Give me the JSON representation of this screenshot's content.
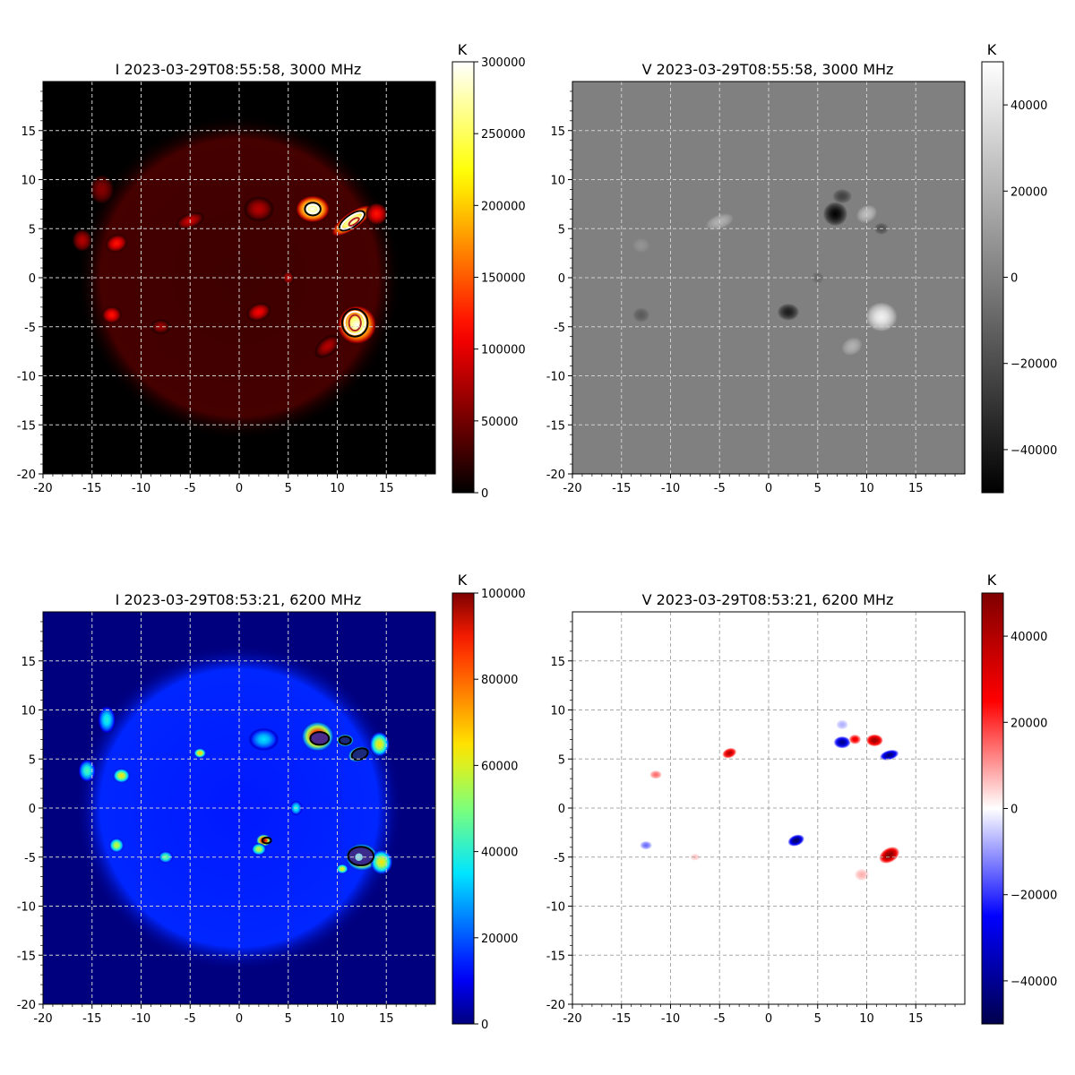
{
  "chart_data": [
    {
      "type": "heatmap",
      "title": "I 2023-03-29T08:55:58, 3000 MHz",
      "stokes": "I",
      "frequency_mhz": 3000,
      "colormap": "hot",
      "xlim": [
        -20,
        20
      ],
      "ylim": [
        -20,
        20
      ],
      "xticks": [
        "-20",
        "-15",
        "-10",
        "-5",
        "0",
        "5",
        "10",
        "15"
      ],
      "yticks": [
        "-20",
        "-15",
        "-10",
        "-5",
        "0",
        "5",
        "10",
        "15"
      ],
      "grid": true,
      "colorbar": {
        "unit": "K",
        "range": [
          0,
          300000
        ],
        "ticks": [
          "0",
          "50000",
          "100000",
          "150000",
          "200000",
          "250000",
          "300000"
        ]
      },
      "disk": {
        "center": [
          0,
          0
        ],
        "radius": 16,
        "brightness_K": 30000
      },
      "sources": [
        {
          "x": 7.5,
          "y": 7,
          "rx": 1.4,
          "ry": 1.1,
          "rot": 0,
          "value_K": 300000
        },
        {
          "x": 11.5,
          "y": 5.8,
          "rx": 2.0,
          "ry": 0.7,
          "rot": 35,
          "value_K": 300000
        },
        {
          "x": 14,
          "y": 6.5,
          "rx": 0.9,
          "ry": 0.9,
          "rot": 0,
          "value_K": 120000
        },
        {
          "x": 12,
          "y": -4.8,
          "rx": 1.6,
          "ry": 1.6,
          "rot": 0,
          "value_K": 300000
        },
        {
          "x": 9,
          "y": -7,
          "rx": 1.2,
          "ry": 0.7,
          "rot": 40,
          "value_K": 80000
        },
        {
          "x": 2,
          "y": -3.5,
          "rx": 1.0,
          "ry": 0.7,
          "rot": 20,
          "value_K": 110000
        },
        {
          "x": -13,
          "y": -3.8,
          "rx": 0.8,
          "ry": 0.7,
          "rot": 0,
          "value_K": 120000
        },
        {
          "x": -12.5,
          "y": 3.5,
          "rx": 0.9,
          "ry": 0.7,
          "rot": 20,
          "value_K": 120000
        },
        {
          "x": -16,
          "y": 3.8,
          "rx": 0.8,
          "ry": 0.9,
          "rot": 0,
          "value_K": 80000
        },
        {
          "x": -5,
          "y": 5.8,
          "rx": 1.2,
          "ry": 0.6,
          "rot": 20,
          "value_K": 90000
        },
        {
          "x": 2,
          "y": 7,
          "rx": 1.2,
          "ry": 1.0,
          "rot": 0,
          "value_K": 80000
        },
        {
          "x": -8,
          "y": -5,
          "rx": 0.8,
          "ry": 0.6,
          "rot": 0,
          "value_K": 70000
        },
        {
          "x": 5,
          "y": 0,
          "rx": 0.5,
          "ry": 0.6,
          "rot": 0,
          "value_K": 80000
        },
        {
          "x": -14,
          "y": 9,
          "rx": 1.0,
          "ry": 1.2,
          "rot": 0,
          "value_K": 60000
        }
      ],
      "contours": [
        {
          "x": 7.5,
          "y": 7,
          "rx": 0.8,
          "ry": 0.65,
          "rot": 0,
          "color": "#000000"
        },
        {
          "x": 7.5,
          "y": 7,
          "rx": 0.6,
          "ry": 0.45,
          "rot": 0,
          "color": "#ffffff"
        },
        {
          "x": 11.5,
          "y": 5.8,
          "rx": 1.5,
          "ry": 0.6,
          "rot": 35,
          "color": "#000000"
        },
        {
          "x": 11.5,
          "y": 5.8,
          "rx": 1.3,
          "ry": 0.45,
          "rot": 35,
          "color": "#ffffff"
        },
        {
          "x": 11.7,
          "y": 5.7,
          "rx": 0.6,
          "ry": 0.25,
          "rot": 35,
          "color": "#b22222"
        },
        {
          "x": 11.8,
          "y": -4.6,
          "rx": 1.3,
          "ry": 1.4,
          "rot": 0,
          "color": "#000000"
        },
        {
          "x": 11.8,
          "y": -4.6,
          "rx": 1.05,
          "ry": 1.15,
          "rot": 0,
          "color": "#ffffff"
        },
        {
          "x": 11.8,
          "y": -4.6,
          "rx": 0.6,
          "ry": 0.8,
          "rot": 0,
          "color": "#b22222"
        }
      ]
    },
    {
      "type": "heatmap",
      "title": "V 2023-03-29T08:55:58, 3000 MHz",
      "stokes": "V",
      "frequency_mhz": 3000,
      "colormap": "gray",
      "xlim": [
        -20,
        20
      ],
      "ylim": [
        -20,
        20
      ],
      "xticks": [
        "-20",
        "-15",
        "-10",
        "-5",
        "0",
        "5",
        "10",
        "15"
      ],
      "yticks": [
        "-20",
        "-15",
        "-10",
        "-5",
        "0",
        "5",
        "10",
        "15"
      ],
      "grid": true,
      "colorbar": {
        "unit": "K",
        "range": [
          -50000,
          50000
        ],
        "ticks": [
          "-40000",
          "-20000",
          "0",
          "20000",
          "40000"
        ]
      },
      "sources": [
        {
          "x": 6.8,
          "y": 6.5,
          "rx": 1.0,
          "ry": 1.0,
          "rot": 0,
          "value_K": -50000
        },
        {
          "x": 7.5,
          "y": 8.3,
          "rx": 0.8,
          "ry": 0.6,
          "rot": 0,
          "value_K": -25000
        },
        {
          "x": 10,
          "y": 6.5,
          "rx": 0.9,
          "ry": 0.7,
          "rot": 30,
          "value_K": 25000
        },
        {
          "x": 11.5,
          "y": 5,
          "rx": 0.6,
          "ry": 0.5,
          "rot": 0,
          "value_K": -20000
        },
        {
          "x": -5,
          "y": 5.7,
          "rx": 1.2,
          "ry": 0.6,
          "rot": 20,
          "value_K": 20000
        },
        {
          "x": -13,
          "y": 3.3,
          "rx": 0.7,
          "ry": 0.6,
          "rot": 0,
          "value_K": 8000
        },
        {
          "x": 2,
          "y": -3.5,
          "rx": 0.9,
          "ry": 0.7,
          "rot": 0,
          "value_K": -40000
        },
        {
          "x": -13,
          "y": -3.8,
          "rx": 0.7,
          "ry": 0.6,
          "rot": 0,
          "value_K": -15000
        },
        {
          "x": 11.5,
          "y": -4,
          "rx": 1.3,
          "ry": 1.2,
          "rot": 0,
          "value_K": 45000
        },
        {
          "x": 8.5,
          "y": -7,
          "rx": 0.9,
          "ry": 0.7,
          "rot": 30,
          "value_K": 20000
        },
        {
          "x": 5,
          "y": 0,
          "rx": 0.5,
          "ry": 0.5,
          "rot": 0,
          "value_K": -10000
        }
      ]
    },
    {
      "type": "heatmap",
      "title": "I 2023-03-29T08:53:21, 6200 MHz",
      "stokes": "I",
      "frequency_mhz": 6200,
      "colormap": "jet",
      "xlim": [
        -20,
        20
      ],
      "ylim": [
        -20,
        20
      ],
      "xticks": [
        "-20",
        "-15",
        "-10",
        "-5",
        "0",
        "5",
        "10",
        "15"
      ],
      "yticks": [
        "-20",
        "-15",
        "-10",
        "-5",
        "0",
        "5",
        "10",
        "15"
      ],
      "grid": true,
      "colorbar": {
        "unit": "K",
        "range": [
          0,
          100000
        ],
        "ticks": [
          "0",
          "20000",
          "40000",
          "60000",
          "80000",
          "100000"
        ]
      },
      "disk": {
        "center": [
          0,
          0
        ],
        "radius": 16,
        "brightness_K": 15000
      },
      "sources": [
        {
          "x": 8,
          "y": 7.3,
          "rx": 1.3,
          "ry": 1.2,
          "rot": 0,
          "value_K": 100000
        },
        {
          "x": 10.8,
          "y": 6.9,
          "rx": 0.7,
          "ry": 0.5,
          "rot": 0,
          "value_K": 100000
        },
        {
          "x": 12.2,
          "y": 5.5,
          "rx": 0.9,
          "ry": 0.6,
          "rot": 20,
          "value_K": 100000
        },
        {
          "x": 14.3,
          "y": 6.5,
          "rx": 0.8,
          "ry": 1.0,
          "rot": 0,
          "value_K": 65000
        },
        {
          "x": -4,
          "y": 5.6,
          "rx": 0.5,
          "ry": 0.4,
          "rot": 0,
          "value_K": 70000
        },
        {
          "x": -12,
          "y": 3.3,
          "rx": 0.7,
          "ry": 0.6,
          "rot": 0,
          "value_K": 65000
        },
        {
          "x": -15.5,
          "y": 3.8,
          "rx": 0.7,
          "ry": 0.9,
          "rot": 0,
          "value_K": 45000
        },
        {
          "x": -13.5,
          "y": 9,
          "rx": 0.7,
          "ry": 1.1,
          "rot": 0,
          "value_K": 40000
        },
        {
          "x": 2.5,
          "y": -3.3,
          "rx": 0.6,
          "ry": 0.5,
          "rot": 0,
          "value_K": 100000
        },
        {
          "x": 2,
          "y": -4.2,
          "rx": 0.6,
          "ry": 0.5,
          "rot": 0,
          "value_K": 60000
        },
        {
          "x": -12.5,
          "y": -3.8,
          "rx": 0.6,
          "ry": 0.6,
          "rot": 0,
          "value_K": 60000
        },
        {
          "x": -7.5,
          "y": -5,
          "rx": 0.6,
          "ry": 0.5,
          "rot": 0,
          "value_K": 50000
        },
        {
          "x": 12.5,
          "y": -5,
          "rx": 1.3,
          "ry": 1.1,
          "rot": 0,
          "value_K": 100000
        },
        {
          "x": 14.5,
          "y": -5.5,
          "rx": 0.9,
          "ry": 1.0,
          "rot": 0,
          "value_K": 65000
        },
        {
          "x": 10.5,
          "y": -6.2,
          "rx": 0.5,
          "ry": 0.4,
          "rot": 0,
          "value_K": 65000
        },
        {
          "x": 5.8,
          "y": 0,
          "rx": 0.5,
          "ry": 0.6,
          "rot": 0,
          "value_K": 40000
        },
        {
          "x": 2.5,
          "y": 7,
          "rx": 1.2,
          "ry": 0.9,
          "rot": 0,
          "value_K": 35000
        }
      ],
      "contours": [
        {
          "x": 8.2,
          "y": 7.1,
          "rx": 0.95,
          "ry": 0.65,
          "rot": 0,
          "color": "#000000",
          "fill": "#4b2a8c"
        },
        {
          "x": 10.8,
          "y": 6.9,
          "rx": 0.6,
          "ry": 0.4,
          "rot": 0,
          "color": "#000000",
          "fill": "#1b2a7a"
        },
        {
          "x": 12.3,
          "y": 5.5,
          "rx": 0.85,
          "ry": 0.55,
          "rot": 20,
          "color": "#000000",
          "fill": "#1b2a7a"
        },
        {
          "x": 2.8,
          "y": -3.3,
          "rx": 0.45,
          "ry": 0.3,
          "rot": 0,
          "color": "#000000",
          "fill": "none"
        },
        {
          "x": 12.4,
          "y": -4.9,
          "rx": 1.3,
          "ry": 0.95,
          "rot": 0,
          "color": "#000000",
          "fill": "#3a2a8c"
        },
        {
          "x": 12.2,
          "y": -5,
          "rx": 0.3,
          "ry": 0.3,
          "rot": 0,
          "color": "#8fd3e0",
          "fill": "#8fd3e0"
        }
      ]
    },
    {
      "type": "heatmap",
      "title": "V 2023-03-29T08:53:21, 6200 MHz",
      "stokes": "V",
      "frequency_mhz": 6200,
      "colormap": "seismic",
      "xlim": [
        -20,
        20
      ],
      "ylim": [
        -20,
        20
      ],
      "xticks": [
        "-20",
        "-15",
        "-10",
        "-5",
        "0",
        "5",
        "10",
        "15"
      ],
      "yticks": [
        "-20",
        "-15",
        "-10",
        "-5",
        "0",
        "5",
        "10",
        "15"
      ],
      "grid": true,
      "colorbar": {
        "unit": "K",
        "range": [
          -50000,
          50000
        ],
        "ticks": [
          "-40000",
          "-20000",
          "0",
          "20000",
          "40000"
        ]
      },
      "sources": [
        {
          "x": 7.5,
          "y": 6.7,
          "rx": 0.7,
          "ry": 0.5,
          "rot": 0,
          "value_K": -42000
        },
        {
          "x": 8.8,
          "y": 7,
          "rx": 0.5,
          "ry": 0.4,
          "rot": 0,
          "value_K": 30000
        },
        {
          "x": 10.8,
          "y": 6.9,
          "rx": 0.7,
          "ry": 0.5,
          "rot": 0,
          "value_K": 45000
        },
        {
          "x": 12.3,
          "y": 5.4,
          "rx": 0.8,
          "ry": 0.4,
          "rot": 15,
          "value_K": -45000
        },
        {
          "x": 7.5,
          "y": 8.5,
          "rx": 0.5,
          "ry": 0.4,
          "rot": 0,
          "value_K": -8000
        },
        {
          "x": -4,
          "y": 5.6,
          "rx": 0.6,
          "ry": 0.4,
          "rot": 20,
          "value_K": 40000
        },
        {
          "x": -11.5,
          "y": 3.4,
          "rx": 0.5,
          "ry": 0.35,
          "rot": 0,
          "value_K": 15000
        },
        {
          "x": 2.8,
          "y": -3.3,
          "rx": 0.7,
          "ry": 0.45,
          "rot": 20,
          "value_K": -48000
        },
        {
          "x": -12.5,
          "y": -3.8,
          "rx": 0.5,
          "ry": 0.35,
          "rot": 0,
          "value_K": -15000
        },
        {
          "x": -7.5,
          "y": -5,
          "rx": 0.4,
          "ry": 0.3,
          "rot": 0,
          "value_K": 6000
        },
        {
          "x": 12.3,
          "y": -4.8,
          "rx": 0.9,
          "ry": 0.6,
          "rot": 30,
          "value_K": 50000
        },
        {
          "x": 9.5,
          "y": -6.8,
          "rx": 0.6,
          "ry": 0.5,
          "rot": 0,
          "value_K": 8000
        }
      ]
    }
  ]
}
